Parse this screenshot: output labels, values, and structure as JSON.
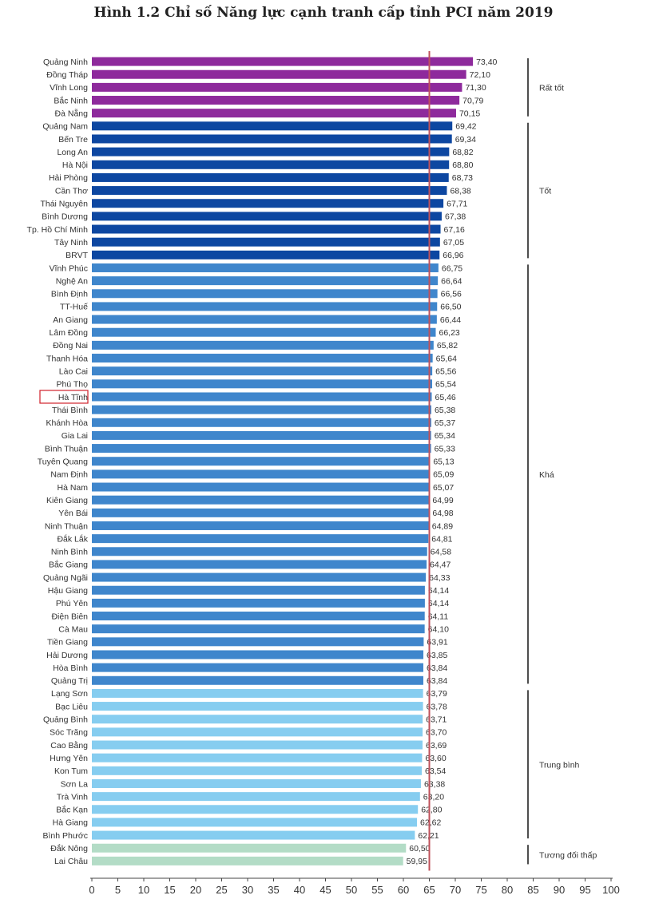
{
  "chart_data": {
    "type": "bar",
    "orientation": "horizontal",
    "title": "Hình 1.2 Chỉ số Năng lực cạnh tranh cấp tỉnh PCI năm 2019",
    "xlim": [
      0,
      100
    ],
    "xticks": [
      0,
      5,
      10,
      15,
      20,
      25,
      30,
      35,
      40,
      45,
      50,
      55,
      60,
      65,
      70,
      75,
      80,
      85,
      90,
      95,
      100
    ],
    "reference_line": 65,
    "highlight": "Hà Tĩnh",
    "categories": [
      "Quảng Ninh",
      "Đồng Tháp",
      "Vĩnh Long",
      "Bắc Ninh",
      "Đà Nẵng",
      "Quảng Nam",
      "Bến Tre",
      "Long An",
      "Hà Nội",
      "Hải Phòng",
      "Cần Thơ",
      "Thái Nguyên",
      "Bình Dương",
      "Tp. Hồ Chí Minh",
      "Tây Ninh",
      "BRVT",
      "Vĩnh Phúc",
      "Nghệ An",
      "Bình Định",
      "TT-Huế",
      "An Giang",
      "Lâm Đồng",
      "Đồng Nai",
      "Thanh Hóa",
      "Lào Cai",
      "Phú Thọ",
      "Hà Tĩnh",
      "Thái Bình",
      "Khánh Hòa",
      "Gia Lai",
      "Bình Thuận",
      "Tuyên Quang",
      "Nam Định",
      "Hà Nam",
      "Kiên Giang",
      "Yên Bái",
      "Ninh Thuận",
      "Đắk Lắk",
      "Ninh Bình",
      "Bắc Giang",
      "Quảng Ngãi",
      "Hậu Giang",
      "Phú Yên",
      "Điện Biên",
      "Cà Mau",
      "Tiền Giang",
      "Hải Dương",
      "Hòa Bình",
      "Quảng Trị",
      "Lạng Sơn",
      "Bạc Liêu",
      "Quảng Bình",
      "Sóc Trăng",
      "Cao Bằng",
      "Hưng Yên",
      "Kon Tum",
      "Sơn La",
      "Trà Vinh",
      "Bắc Kạn",
      "Hà Giang",
      "Bình Phước",
      "Đắk Nông",
      "Lai Châu"
    ],
    "values": [
      73.4,
      72.1,
      71.3,
      70.79,
      70.15,
      69.42,
      69.34,
      68.82,
      68.8,
      68.73,
      68.38,
      67.71,
      67.38,
      67.16,
      67.05,
      66.96,
      66.75,
      66.64,
      66.56,
      66.5,
      66.44,
      66.23,
      65.82,
      65.64,
      65.56,
      65.54,
      65.46,
      65.38,
      65.37,
      65.34,
      65.33,
      65.13,
      65.09,
      65.07,
      64.99,
      64.98,
      64.89,
      64.81,
      64.58,
      64.47,
      64.33,
      64.14,
      64.14,
      64.11,
      64.1,
      63.91,
      63.85,
      63.84,
      63.84,
      63.79,
      63.78,
      63.71,
      63.7,
      63.69,
      63.6,
      63.54,
      63.38,
      63.2,
      62.8,
      62.62,
      62.21,
      60.5,
      59.95
    ],
    "value_labels": [
      "73,40",
      "72,10",
      "71,30",
      "70,79",
      "70,15",
      "69,42",
      "69,34",
      "68,82",
      "68,80",
      "68,73",
      "68,38",
      "67,71",
      "67,38",
      "67,16",
      "67,05",
      "66,96",
      "66,75",
      "66,64",
      "66,56",
      "66,50",
      "66,44",
      "66,23",
      "65,82",
      "65,64",
      "65,56",
      "65,54",
      "65,46",
      "65,38",
      "65,37",
      "65,34",
      "65,33",
      "65,13",
      "65,09",
      "65,07",
      "64,99",
      "64,98",
      "64,89",
      "64,81",
      "64,58",
      "64,47",
      "64,33",
      "64,14",
      "64,14",
      "64,11",
      "64,10",
      "63,91",
      "63,85",
      "63,84",
      "63,84",
      "63,79",
      "63,78",
      "63,71",
      "63,70",
      "63,69",
      "63,60",
      "63,54",
      "63,38",
      "63,20",
      "62,80",
      "62,62",
      "62,21",
      "60,50",
      "59,95"
    ],
    "groups": [
      {
        "label": "Rất tốt",
        "start": 0,
        "end": 4,
        "color": "#8e2a9c"
      },
      {
        "label": "Tốt",
        "start": 5,
        "end": 15,
        "color": "#0d47a1"
      },
      {
        "label": "Khá",
        "start": 16,
        "end": 48,
        "color": "#3f86cc"
      },
      {
        "label": "Trung bình",
        "start": 49,
        "end": 60,
        "color": "#86cdf0"
      },
      {
        "label": "Tương đối thấp",
        "start": 61,
        "end": 62,
        "color": "#b3dcc6"
      }
    ],
    "reference_line_color": "#c0505a",
    "highlight_color": "#d0202a"
  }
}
